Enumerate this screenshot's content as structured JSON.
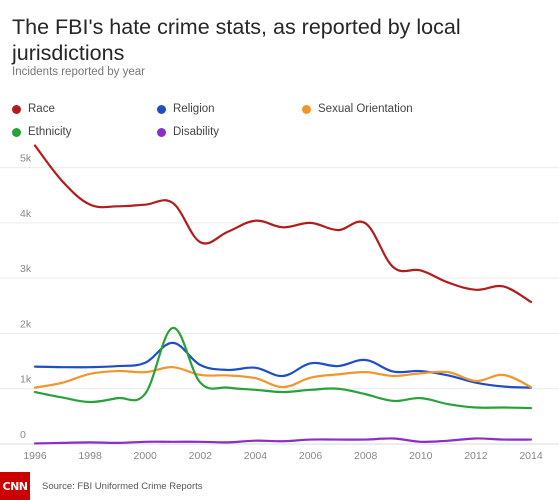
{
  "header": {
    "title": "The FBI's hate crime stats, as reported by local jurisdictions",
    "subtitle": "Incidents reported by year"
  },
  "footer": {
    "logo_text": "CNN",
    "source": "Source: FBI Uniformed Crime Reports"
  },
  "chart_data": {
    "type": "line",
    "title": "The FBI's hate crime stats, as reported by local jurisdictions",
    "subtitle": "Incidents reported by year",
    "xlabel": "",
    "ylabel": "",
    "x": [
      1996,
      1997,
      1998,
      1999,
      2000,
      2001,
      2002,
      2003,
      2004,
      2005,
      2006,
      2007,
      2008,
      2009,
      2010,
      2011,
      2012,
      2013,
      2014
    ],
    "xlim": [
      1996,
      2014
    ],
    "ylim": [
      0,
      5500
    ],
    "x_ticks": [
      "1996",
      "1998",
      "2000",
      "2002",
      "2004",
      "2006",
      "2008",
      "2010",
      "2012",
      "2014"
    ],
    "y_ticks": [
      {
        "value": 0,
        "label": "0"
      },
      {
        "value": 1000,
        "label": "1k"
      },
      {
        "value": 2000,
        "label": "2k"
      },
      {
        "value": 3000,
        "label": "3k"
      },
      {
        "value": 4000,
        "label": "4k"
      },
      {
        "value": 5000,
        "label": "5k"
      }
    ],
    "grid": true,
    "legend_position": "top",
    "series": [
      {
        "name": "Race",
        "color": "#b31c1c",
        "values": [
          5400,
          4750,
          4330,
          4300,
          4330,
          4360,
          3650,
          3840,
          4040,
          3920,
          4000,
          3870,
          3990,
          3200,
          3140,
          2920,
          2790,
          2850,
          2570
        ]
      },
      {
        "name": "Religion",
        "color": "#1f4fc4",
        "values": [
          1400,
          1390,
          1390,
          1410,
          1470,
          1830,
          1430,
          1340,
          1380,
          1230,
          1460,
          1410,
          1520,
          1310,
          1320,
          1240,
          1110,
          1040,
          1020
        ]
      },
      {
        "name": "Sexual Orientation",
        "color": "#f0962d",
        "values": [
          1020,
          1110,
          1270,
          1320,
          1300,
          1390,
          1250,
          1240,
          1190,
          1030,
          1200,
          1260,
          1300,
          1230,
          1280,
          1300,
          1140,
          1250,
          1030
        ]
      },
      {
        "name": "Ethnicity",
        "color": "#27a23a",
        "values": [
          940,
          840,
          760,
          830,
          910,
          2100,
          1110,
          1020,
          980,
          940,
          980,
          1000,
          900,
          780,
          830,
          720,
          660,
          660,
          650
        ]
      },
      {
        "name": "Disability",
        "color": "#8b2ec9",
        "values": [
          10,
          20,
          30,
          20,
          40,
          40,
          40,
          30,
          60,
          50,
          80,
          80,
          80,
          100,
          40,
          60,
          100,
          80,
          80
        ]
      }
    ]
  }
}
